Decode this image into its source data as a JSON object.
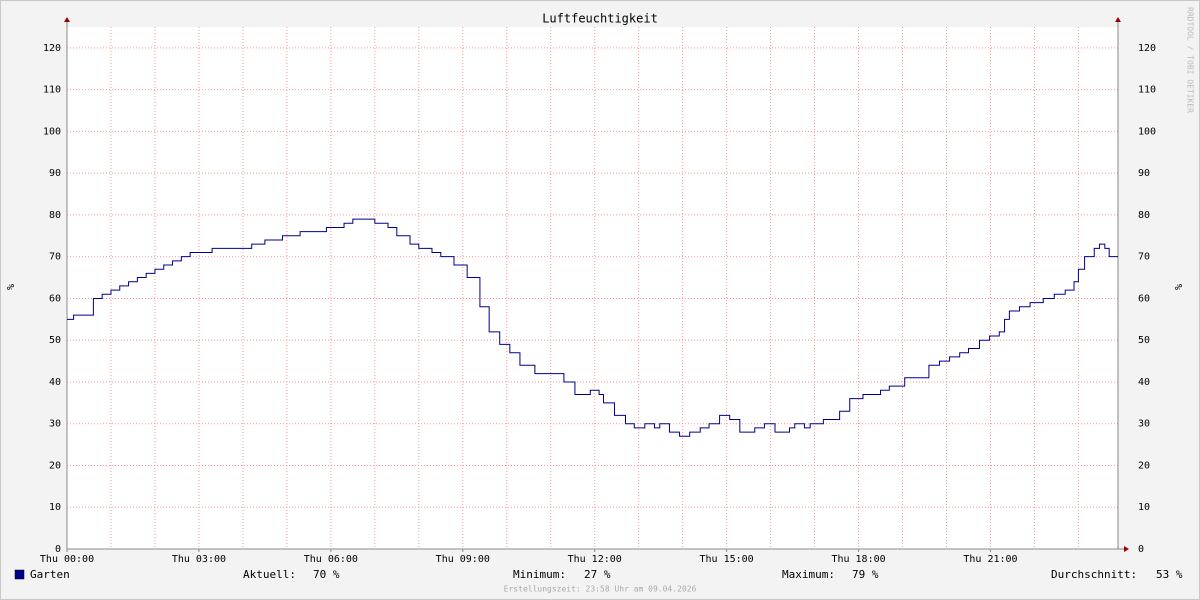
{
  "chart_data": {
    "type": "line",
    "title": "Luftfeuchtigkeit",
    "y_label": "%",
    "watermark": "RRDTOOL / TOBI OETIKER",
    "footer": "Erstellungszeit: 23:58 Uhr am 09.04.2026",
    "xlim": [
      0,
      23.9
    ],
    "ylim": [
      0,
      125
    ],
    "xticks": [
      {
        "value": 0,
        "label": "Thu 00:00"
      },
      {
        "value": 3,
        "label": "Thu 03:00"
      },
      {
        "value": 6,
        "label": "Thu 06:00"
      },
      {
        "value": 9,
        "label": "Thu 09:00"
      },
      {
        "value": 12,
        "label": "Thu 12:00"
      },
      {
        "value": 15,
        "label": "Thu 15:00"
      },
      {
        "value": 18,
        "label": "Thu 18:00"
      },
      {
        "value": 21,
        "label": "Thu 21:00"
      }
    ],
    "xgrid": [
      1,
      2,
      4,
      5,
      7,
      8,
      10,
      11,
      13,
      14,
      16,
      17,
      19,
      20,
      22,
      23
    ],
    "yticks": [
      0,
      10,
      20,
      30,
      40,
      50,
      60,
      70,
      80,
      90,
      100,
      110,
      120
    ],
    "grid": true,
    "step": true,
    "x": [
      0,
      0.15,
      0.6,
      0.8,
      1.0,
      1.2,
      1.4,
      1.6,
      1.8,
      2.0,
      2.2,
      2.4,
      2.6,
      2.8,
      3.3,
      4.2,
      4.5,
      4.9,
      5.3,
      5.9,
      6.3,
      6.5,
      7.0,
      7.3,
      7.5,
      7.8,
      8.0,
      8.3,
      8.5,
      8.8,
      9.1,
      9.39,
      9.6,
      9.84,
      10.07,
      10.3,
      10.64,
      10.98,
      11.3,
      11.55,
      11.9,
      12.1,
      12.2,
      12.45,
      12.7,
      12.9,
      13.14,
      13.36,
      13.48,
      13.7,
      13.93,
      14.16,
      14.4,
      14.6,
      14.84,
      15.07,
      15.3,
      15.64,
      15.86,
      16.1,
      16.43,
      16.55,
      16.77,
      16.9,
      17.2,
      17.57,
      17.8,
      18.1,
      18.5,
      18.7,
      19.05,
      19.6,
      19.84,
      20.07,
      20.3,
      20.5,
      20.75,
      20.98,
      21.2,
      21.32,
      21.43,
      21.66,
      21.9,
      22.2,
      22.45,
      22.7,
      22.9,
      23.0,
      23.14,
      23.36,
      23.48,
      23.6,
      23.7,
      23.86
    ],
    "series": [
      {
        "name": "Garten",
        "color": "#00008b",
        "values": [
          55,
          56,
          60,
          61,
          62,
          63,
          64,
          65,
          66,
          67,
          68,
          69,
          70,
          71,
          72,
          73,
          74,
          75,
          76,
          77,
          78,
          79,
          78,
          77,
          75,
          73,
          72,
          71,
          70,
          68,
          65,
          58,
          52,
          49,
          47,
          44,
          42,
          42,
          40,
          37,
          38,
          37,
          35,
          32,
          30,
          29,
          30,
          29,
          30,
          28,
          27,
          28,
          29,
          30,
          32,
          31,
          28,
          29,
          30,
          28,
          29,
          30,
          29,
          30,
          31,
          33,
          36,
          37,
          38,
          39,
          41,
          44,
          45,
          46,
          47,
          48,
          50,
          51,
          52,
          55,
          57,
          58,
          59,
          60,
          61,
          62,
          64,
          67,
          70,
          72,
          73,
          72,
          70,
          70
        ]
      }
    ],
    "stats": [
      {
        "label": "Aktuell:",
        "text": "70 %"
      },
      {
        "label": "Minimum:",
        "text": "27 %"
      },
      {
        "label": "Maximum:",
        "text": "79 %"
      },
      {
        "label": "Durchschnitt:",
        "text": "53 %"
      }
    ]
  }
}
